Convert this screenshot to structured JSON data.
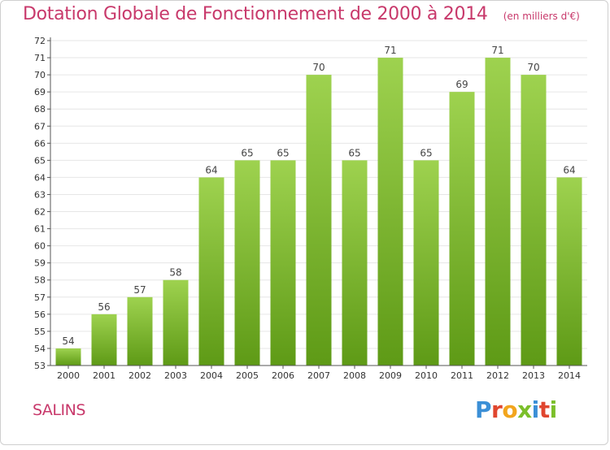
{
  "title": "Dotation Globale de Fonctionnement de 2000 à 2014",
  "subtitle": "(en milliers d'€)",
  "footer_label": "SALINS",
  "logo_text": "Proxiti",
  "colors": {
    "accent": "#c8396b",
    "bar_top": "#9ed24f",
    "bar_bottom": "#5e9a16",
    "axis": "#555555",
    "grid": "#e6e6e6"
  },
  "chart_data": {
    "type": "bar",
    "title": "Dotation Globale de Fonctionnement de 2000 à 2014",
    "subtitle": "(en milliers d'€)",
    "xlabel": "",
    "ylabel": "",
    "ylim": [
      53,
      72
    ],
    "y_ticks": [
      53,
      54,
      55,
      56,
      57,
      58,
      59,
      60,
      61,
      62,
      63,
      64,
      65,
      66,
      67,
      68,
      69,
      70,
      71,
      72
    ],
    "grid": true,
    "categories": [
      "2000",
      "2001",
      "2002",
      "2003",
      "2004",
      "2005",
      "2006",
      "2007",
      "2008",
      "2009",
      "2010",
      "2011",
      "2012",
      "2013",
      "2014"
    ],
    "values": [
      54,
      56,
      57,
      58,
      64,
      65,
      65,
      70,
      65,
      71,
      65,
      69,
      71,
      70,
      64
    ]
  }
}
